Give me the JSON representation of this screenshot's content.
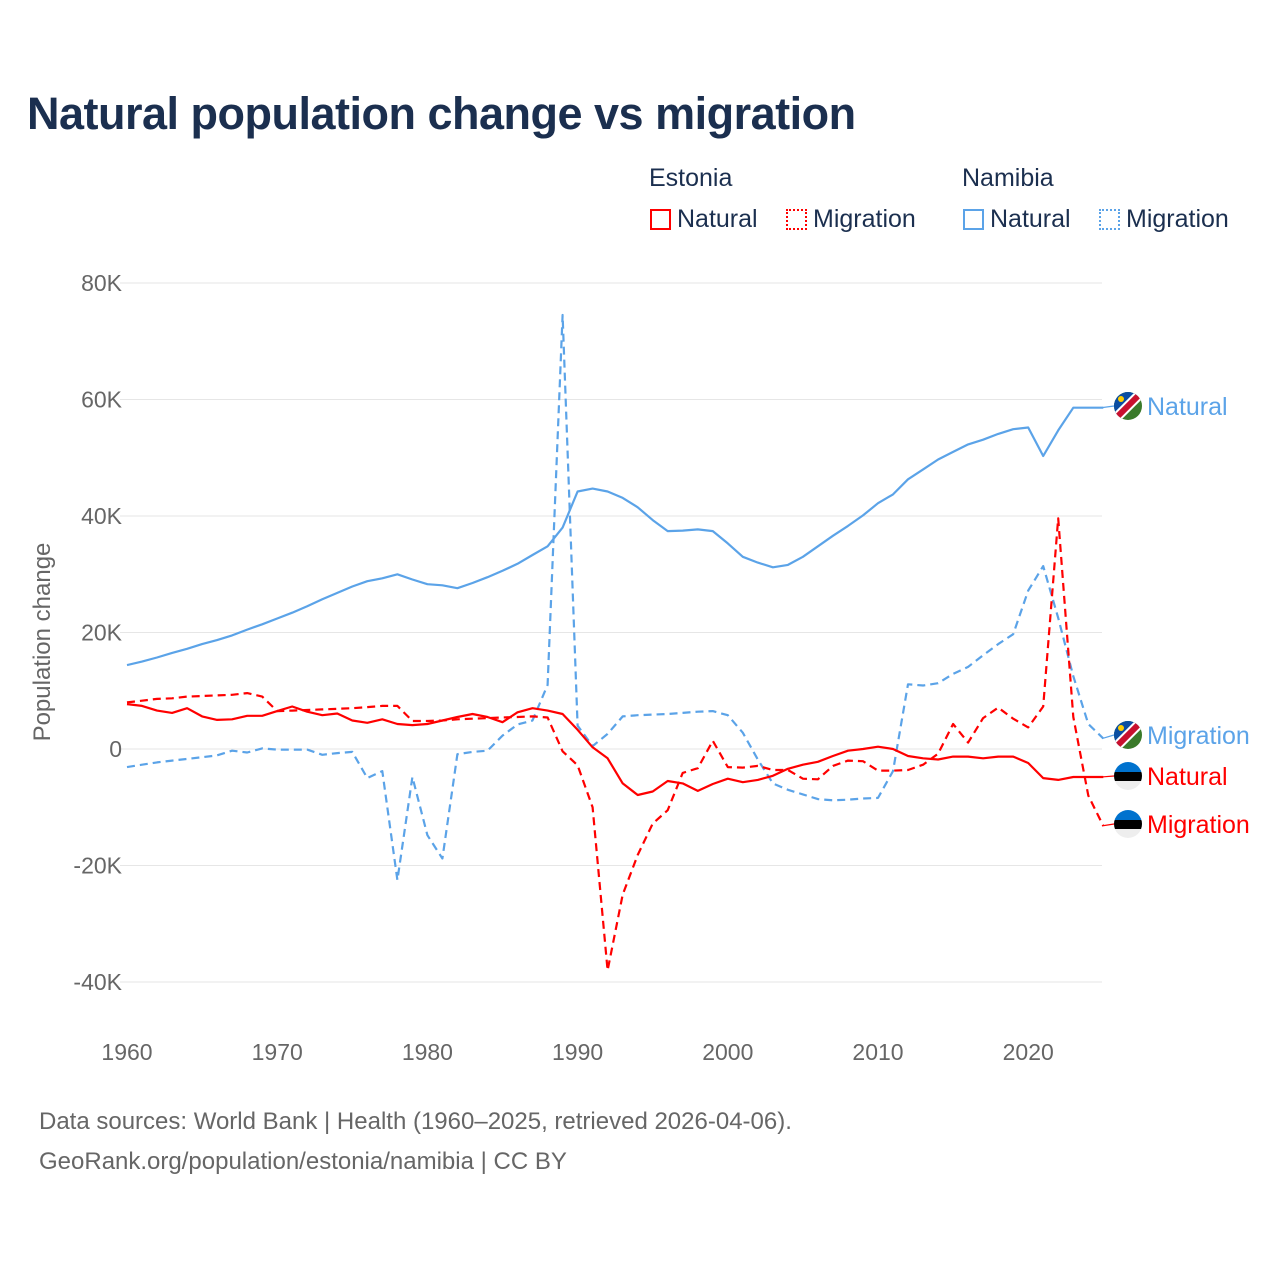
{
  "title": "Natural population change vs migration",
  "legend": {
    "groups": [
      {
        "name": "Estonia",
        "color": "#ff0000",
        "items": [
          "Natural",
          "Migration"
        ]
      },
      {
        "name": "Namibia",
        "color": "#5ba3e8",
        "items": [
          "Natural",
          "Migration"
        ]
      }
    ]
  },
  "footer": {
    "line1": "Data sources: World Bank | Health (1960–2025, retrieved 2026-04-06).",
    "line2": "GeoRank.org/population/estonia/namibia | CC BY"
  },
  "chart_data": {
    "type": "line",
    "title": "Natural population change vs migration",
    "xlabel": "",
    "ylabel": "Population change",
    "xlim": [
      1960,
      2025
    ],
    "ylim": [
      -45000,
      80000
    ],
    "x_ticks": [
      1960,
      1970,
      1980,
      1990,
      2000,
      2010,
      2020
    ],
    "x_tick_labels": [
      "1960",
      "1970",
      "1980",
      "1990",
      "2000",
      "2010",
      "2020"
    ],
    "y_ticks": [
      80000,
      60000,
      40000,
      20000,
      0,
      -20000,
      -40000
    ],
    "y_tick_labels": [
      "80K",
      "60K",
      "40K",
      "20K",
      "0",
      "-20K",
      "-40K"
    ],
    "grid": true,
    "legend_position": "top-right",
    "x_start": 1960,
    "series": [
      {
        "name": "Namibia Natural",
        "label": "Natural",
        "country": "Namibia",
        "style": "solid",
        "color": "#5ba3e8",
        "values": [
          14.4,
          15.0,
          15.7,
          16.5,
          17.2,
          18.0,
          18.7,
          19.5,
          20.5,
          21.4,
          22.4,
          23.4,
          24.5,
          25.7,
          26.8,
          27.9,
          28.8,
          29.3,
          30.0,
          29.1,
          28.3,
          28.1,
          27.6,
          28.5,
          29.5,
          30.6,
          31.8,
          33.3,
          34.8,
          38.0,
          44.2,
          44.7,
          44.2,
          43.1,
          41.5,
          39.3,
          37.4,
          37.5,
          37.7,
          37.4,
          35.3,
          33.0,
          32.0,
          31.2,
          31.6,
          33.0,
          34.8,
          36.6,
          38.3,
          40.1,
          42.2,
          43.7,
          46.3,
          48.0,
          49.7,
          51.0,
          52.3,
          53.1,
          54.1,
          54.9,
          55.2,
          50.3,
          54.7,
          58.6,
          58.6,
          58.6
        ]
      },
      {
        "name": "Namibia Migration",
        "label": "Migration",
        "country": "Namibia",
        "style": "dashed",
        "color": "#5ba3e8",
        "values": [
          -3.1,
          -2.7,
          -2.3,
          -2.0,
          -1.7,
          -1.4,
          -1.1,
          -0.3,
          -0.6,
          0.1,
          -0.1,
          -0.1,
          -0.1,
          -1.0,
          -0.7,
          -0.5,
          -5.0,
          -3.8,
          -22.5,
          -4.8,
          -14.8,
          -18.8,
          -0.9,
          -0.5,
          -0.3,
          2.3,
          4.2,
          4.9,
          11.0,
          74.5,
          4.0,
          0.5,
          2.6,
          5.6,
          5.8,
          5.9,
          6.0,
          6.2,
          6.4,
          6.5,
          5.8,
          2.8,
          -1.8,
          -5.9,
          -7.0,
          -7.8,
          -8.6,
          -8.8,
          -8.7,
          -8.5,
          -8.4,
          -3.8,
          11.1,
          10.9,
          11.3,
          12.9,
          14.1,
          16.1,
          18.0,
          19.7,
          27.2,
          31.4,
          22.5,
          12.5,
          4.3,
          1.8
        ]
      },
      {
        "name": "Estonia Natural",
        "label": "Natural",
        "country": "Estonia",
        "style": "solid",
        "color": "#ff0000",
        "values": [
          7.7,
          7.4,
          6.6,
          6.2,
          7.0,
          5.6,
          5.0,
          5.1,
          5.7,
          5.7,
          6.5,
          7.3,
          6.4,
          5.8,
          6.1,
          4.9,
          4.5,
          5.1,
          4.3,
          4.1,
          4.3,
          4.9,
          5.5,
          6.0,
          5.5,
          4.6,
          6.3,
          7.0,
          6.6,
          6.0,
          3.3,
          0.3,
          -1.6,
          -5.9,
          -7.9,
          -7.3,
          -5.5,
          -5.9,
          -7.2,
          -6.0,
          -5.1,
          -5.7,
          -5.3,
          -4.6,
          -3.4,
          -2.7,
          -2.2,
          -1.2,
          -0.3,
          0.0,
          0.4,
          0.0,
          -1.2,
          -1.6,
          -1.8,
          -1.3,
          -1.3,
          -1.6,
          -1.3,
          -1.3,
          -2.4,
          -5.0,
          -5.3,
          -4.8,
          -4.8,
          -4.8
        ]
      },
      {
        "name": "Estonia Migration",
        "label": "Migration",
        "country": "Estonia",
        "style": "dashed",
        "color": "#ff0000",
        "values": [
          8.0,
          8.3,
          8.6,
          8.7,
          9.0,
          9.1,
          9.2,
          9.3,
          9.6,
          9.0,
          6.5,
          6.6,
          6.7,
          6.8,
          6.9,
          7.0,
          7.2,
          7.4,
          7.4,
          4.8,
          4.8,
          4.9,
          5.1,
          5.2,
          5.3,
          5.4,
          5.5,
          5.6,
          5.4,
          -0.4,
          -2.8,
          -10.0,
          -38.0,
          -25.0,
          -18.2,
          -12.8,
          -10.5,
          -4.1,
          -3.3,
          1.4,
          -3.1,
          -3.2,
          -2.9,
          -3.6,
          -3.6,
          -5.1,
          -5.2,
          -2.9,
          -2.0,
          -2.1,
          -3.7,
          -3.7,
          -3.6,
          -2.7,
          -0.8,
          4.3,
          1.1,
          5.3,
          7.1,
          5.2,
          3.7,
          7.3,
          39.6,
          5.5,
          -8.0,
          -13.2
        ]
      }
    ],
    "value_unit": "thousands"
  }
}
